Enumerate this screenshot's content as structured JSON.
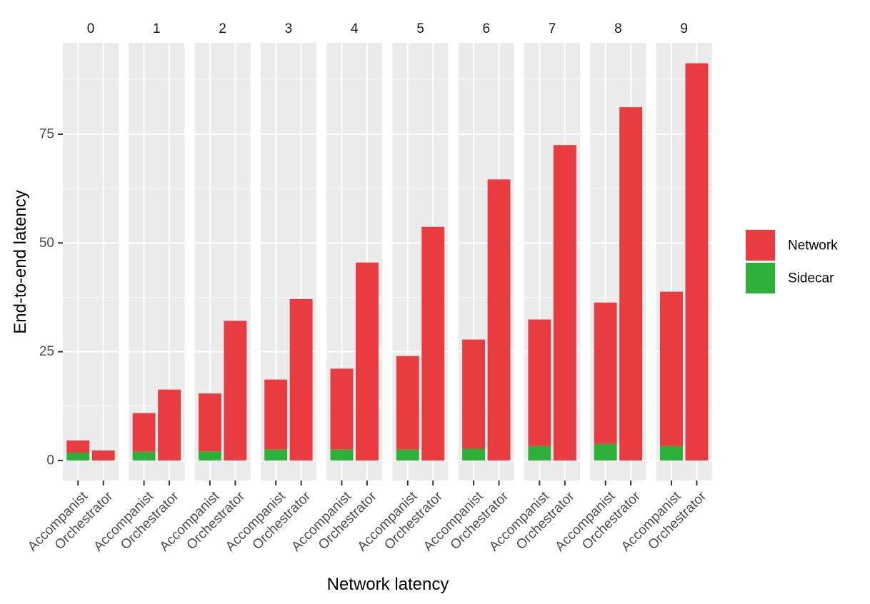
{
  "chart_data": {
    "type": "bar",
    "stacked": true,
    "facet_by": "Network latency",
    "facets": [
      "0",
      "1",
      "2",
      "3",
      "4",
      "5",
      "6",
      "7",
      "8",
      "9"
    ],
    "categories": [
      "Accompanist",
      "Orchestrator"
    ],
    "series": [
      {
        "name": "Sidecar",
        "color": "#2eaf3a",
        "values": [
          [
            1.8,
            0
          ],
          [
            2.0,
            0
          ],
          [
            2.1,
            0
          ],
          [
            2.5,
            0
          ],
          [
            2.5,
            0
          ],
          [
            2.5,
            0
          ],
          [
            2.7,
            0
          ],
          [
            3.3,
            0
          ],
          [
            3.8,
            0
          ],
          [
            3.3,
            0
          ]
        ]
      },
      {
        "name": "Network",
        "color": "#e83c41",
        "values": [
          [
            2.8,
            2.3
          ],
          [
            8.9,
            16.3
          ],
          [
            13.3,
            32.1
          ],
          [
            16.1,
            37.1
          ],
          [
            18.6,
            45.5
          ],
          [
            21.5,
            53.7
          ],
          [
            25.1,
            64.6
          ],
          [
            29.1,
            72.5
          ],
          [
            32.5,
            81.2
          ],
          [
            35.5,
            91.3
          ]
        ]
      }
    ],
    "xlabel": "Network latency",
    "ylabel": "End-to-end latency",
    "yticks": [
      0,
      25,
      50,
      75
    ],
    "ylim": [
      -4.6,
      96.0
    ],
    "grid": true,
    "legend_position": "right"
  }
}
